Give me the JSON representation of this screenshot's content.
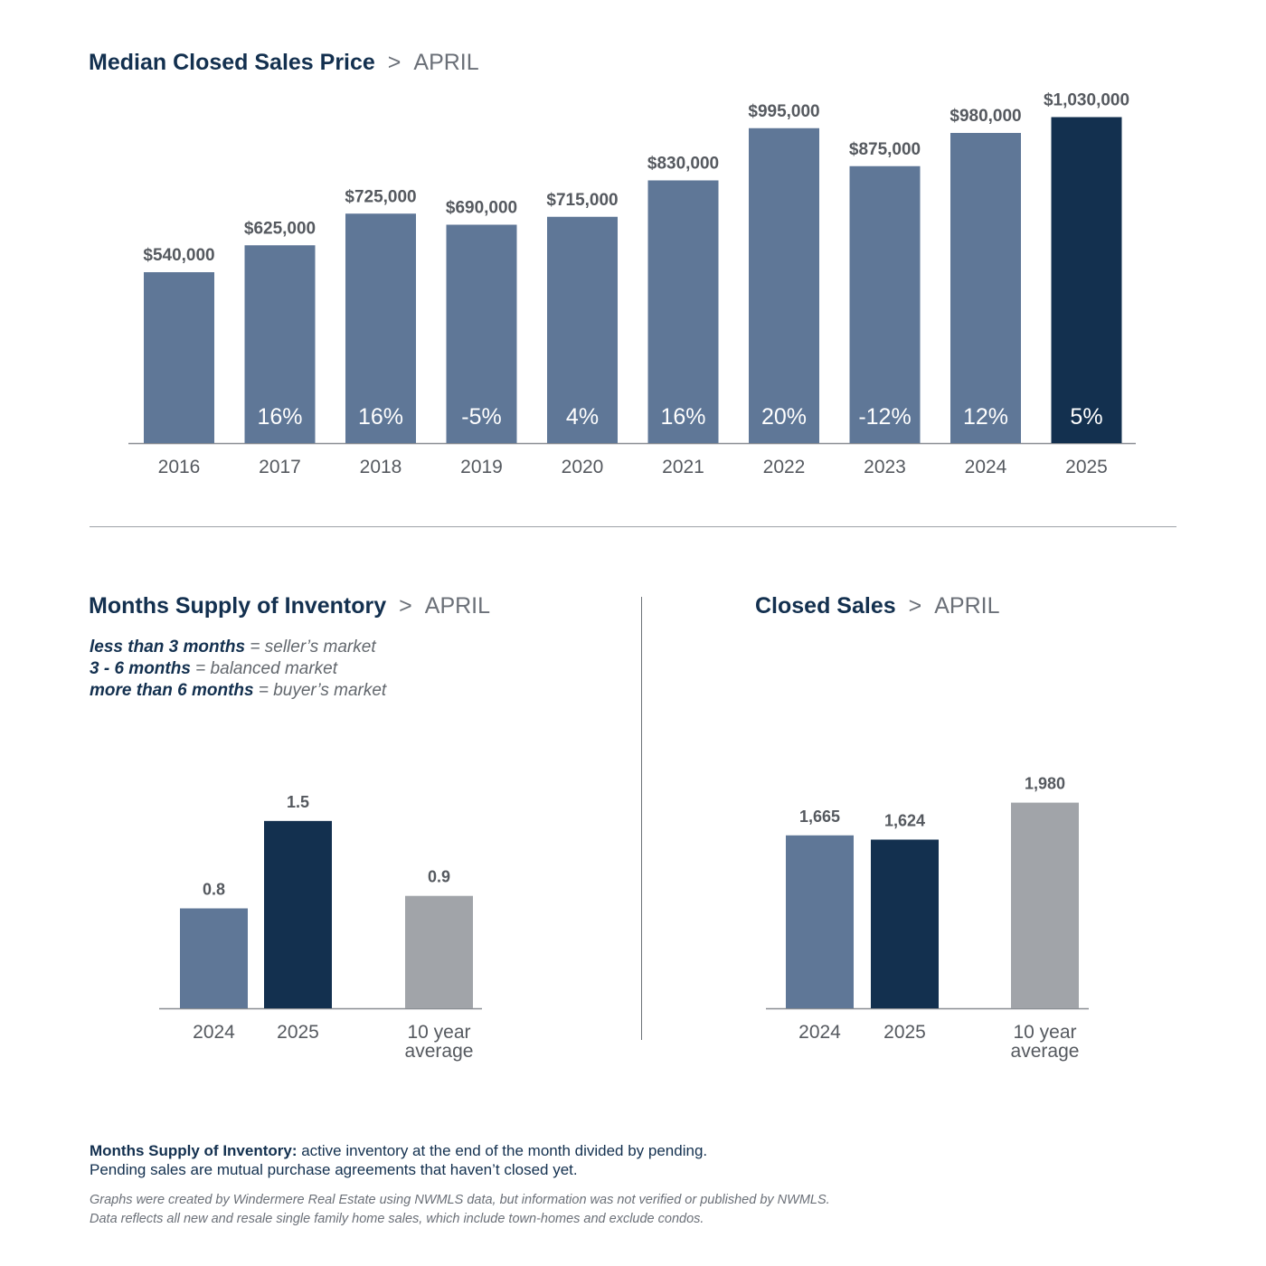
{
  "charts": {
    "main": {
      "title": "Median Closed Sales Price",
      "separator": ">",
      "month": "APRIL"
    },
    "inventory": {
      "title": "Months Supply of Inventory",
      "separator": ">",
      "month": "APRIL"
    },
    "sales": {
      "title": "Closed Sales",
      "separator": ">",
      "month": "APRIL"
    }
  },
  "legend": [
    {
      "key": "less than 3 months",
      "text": " = seller’s market"
    },
    {
      "key": "3 - 6 months",
      "text": " = balanced market"
    },
    {
      "key": "more than 6 months",
      "text": " = buyer’s market"
    }
  ],
  "note": {
    "key": "Months Supply of Inventory:",
    "line1": " active inventory at the end of the month divided by pending.",
    "line2": "Pending sales are mutual purchase agreements that haven’t closed yet."
  },
  "disclaimer": {
    "line1": "Graphs were created by Windermere Real Estate using NWMLS data, but information was not verified or published by NWMLS.",
    "line2": "Data reflects all new and resale single family home sales, which include town-homes and exclude condos."
  },
  "colors": {
    "bar": "#5f7797",
    "highlight": "#13304f",
    "average": "#a1a4a9",
    "axis": "#8a8e93",
    "label": "#55595f"
  },
  "chart_data": [
    {
      "type": "bar",
      "title": "Median Closed Sales Price",
      "categories": [
        "2016",
        "2017",
        "2018",
        "2019",
        "2020",
        "2021",
        "2022",
        "2023",
        "2024",
        "2025"
      ],
      "values": [
        540000,
        625000,
        725000,
        690000,
        715000,
        830000,
        995000,
        875000,
        980000,
        1030000
      ],
      "value_labels": [
        "$540,000",
        "$625,000",
        "$725,000",
        "$690,000",
        "$715,000",
        "$830,000",
        "$995,000",
        "$875,000",
        "$980,000",
        "$1,030,000"
      ],
      "change_labels": [
        "",
        "16%",
        "16%",
        "-5%",
        "4%",
        "16%",
        "20%",
        "-12%",
        "12%",
        "5%"
      ],
      "highlight_index": 9,
      "ylim": [
        0,
        1200000
      ],
      "grid": false
    },
    {
      "type": "bar",
      "title": "Months Supply of Inventory",
      "categories": [
        [
          "2024"
        ],
        [
          "2025"
        ],
        [
          "10 year",
          "average"
        ]
      ],
      "values": [
        0.8,
        1.5,
        0.9
      ],
      "value_labels": [
        "0.8",
        "1.5",
        "0.9"
      ],
      "bar_colors": [
        "bar",
        "highlight",
        "average"
      ],
      "ylim": [
        0,
        2.1
      ],
      "grid": false
    },
    {
      "type": "bar",
      "title": "Closed Sales",
      "categories": [
        [
          "2024"
        ],
        [
          "2025"
        ],
        [
          "10 year",
          "average"
        ]
      ],
      "values": [
        1665,
        1624,
        1980
      ],
      "value_labels": [
        "1,665",
        "1,624",
        "1,980"
      ],
      "bar_colors": [
        "bar",
        "highlight",
        "average"
      ],
      "ylim": [
        0,
        2525
      ],
      "grid": false
    }
  ]
}
